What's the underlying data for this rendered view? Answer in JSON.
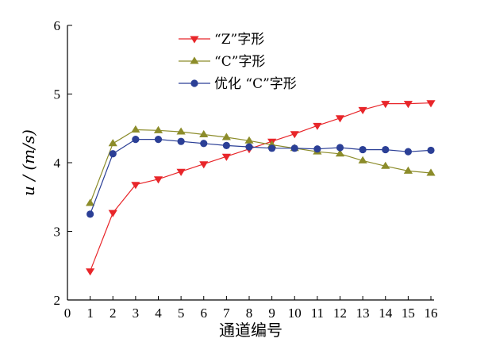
{
  "chart_data": {
    "type": "line",
    "x": [
      1,
      2,
      3,
      4,
      5,
      6,
      7,
      8,
      9,
      10,
      11,
      12,
      13,
      14,
      15,
      16
    ],
    "xlabel": "通道编号",
    "ylabel": "u / (m/s)",
    "xlim": [
      0,
      16
    ],
    "ylim": [
      2,
      6
    ],
    "xticks": [
      "0",
      "1",
      "2",
      "3",
      "4",
      "5",
      "6",
      "7",
      "8",
      "9",
      "10",
      "11",
      "12",
      "13",
      "14",
      "15",
      "16"
    ],
    "yticks": [
      "2",
      "3",
      "4",
      "5",
      "6"
    ],
    "grid": false,
    "legend_position": "top-center",
    "series": [
      {
        "name": "“Z”字形",
        "color": "#e8262a",
        "marker": "triangle-down",
        "values": [
          2.42,
          3.27,
          3.68,
          3.76,
          3.87,
          3.98,
          4.09,
          4.2,
          4.31,
          4.42,
          4.54,
          4.65,
          4.77,
          4.86,
          4.86,
          4.87
        ]
      },
      {
        "name": "“C”字形",
        "color": "#8c8c2a",
        "marker": "triangle-up",
        "values": [
          3.41,
          4.28,
          4.48,
          4.47,
          4.45,
          4.41,
          4.37,
          4.32,
          4.26,
          4.21,
          4.16,
          4.13,
          4.03,
          3.95,
          3.88,
          3.85
        ]
      },
      {
        "name": "优化 “C”字形",
        "color": "#2b3f96",
        "marker": "circle",
        "values": [
          3.25,
          4.13,
          4.34,
          4.34,
          4.31,
          4.28,
          4.25,
          4.23,
          4.21,
          4.21,
          4.2,
          4.22,
          4.19,
          4.19,
          4.16,
          4.18
        ]
      }
    ]
  }
}
